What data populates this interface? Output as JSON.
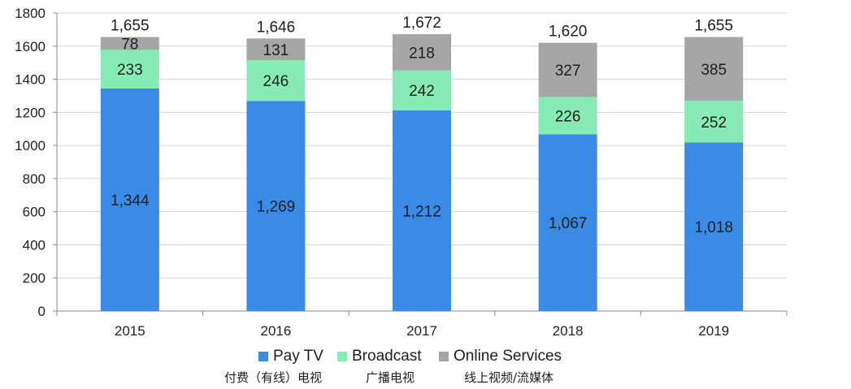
{
  "chart_data": {
    "type": "bar",
    "stacked": true,
    "categories": [
      "2015",
      "2016",
      "2017",
      "2018",
      "2019"
    ],
    "series": [
      {
        "name": "Pay TV",
        "subtitle": "付费（有线）电视",
        "color": "#3a8be6",
        "values": [
          1344,
          1269,
          1212,
          1067,
          1018
        ]
      },
      {
        "name": "Broadcast",
        "subtitle": "广播电视",
        "color": "#86ebb4",
        "values": [
          233,
          246,
          242,
          226,
          252
        ]
      },
      {
        "name": "Online Services",
        "subtitle": "线上视频/流媒体",
        "color": "#a6a6a6",
        "values": [
          78,
          131,
          218,
          327,
          385
        ]
      }
    ],
    "segment_labels": [
      [
        "1,344",
        "1,269",
        "1,212",
        "1,067",
        "1,018"
      ],
      [
        "233",
        "246",
        "242",
        "226",
        "252"
      ],
      [
        "78",
        "131",
        "218",
        "327",
        "385"
      ]
    ],
    "totals": [
      1655,
      1646,
      1672,
      1620,
      1655
    ],
    "total_labels": [
      "1,655",
      "1,646",
      "1,672",
      "1,620",
      "1,655"
    ],
    "ylim": [
      0,
      1800
    ],
    "yticks": [
      "0",
      "200",
      "400",
      "600",
      "800",
      "1000",
      "1200",
      "1400",
      "1600",
      "1800"
    ],
    "title": "",
    "xlabel": "",
    "ylabel": "",
    "grid": true,
    "legend_position": "bottom"
  }
}
